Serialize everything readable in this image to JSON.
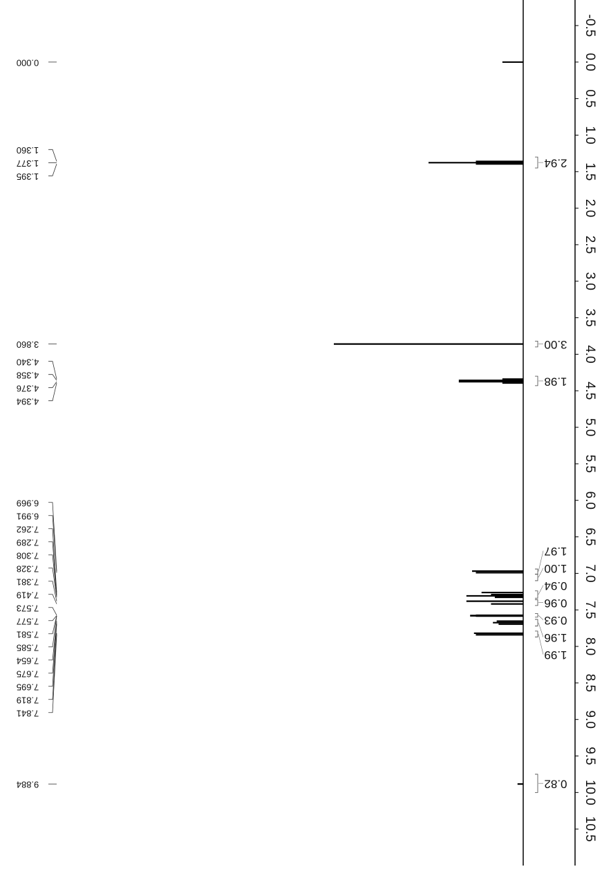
{
  "chart_data": {
    "type": "nmr",
    "xlim": [
      -0.85,
      11.0
    ],
    "xticks": [
      -0.5,
      {
        "value": 0,
        "label": "0.0"
      },
      0.5,
      {
        "value": 1,
        "label": "1.0"
      },
      1.5,
      {
        "value": 2,
        "label": "2.0"
      },
      2.5,
      {
        "value": 3,
        "label": "3.0"
      },
      3.5,
      {
        "value": 4,
        "label": "4.0"
      },
      4.5,
      {
        "value": 5,
        "label": "5.0"
      },
      5.5,
      {
        "value": 6,
        "label": "6.0"
      },
      6.5,
      {
        "value": 7,
        "label": "7.0"
      },
      7.5,
      {
        "value": 8,
        "label": "8.0"
      },
      8.5,
      {
        "value": 9,
        "label": "9.0"
      },
      9.5,
      {
        "value": 10,
        "label": "10.0"
      },
      10.5
    ],
    "color": "#000000",
    "peaks": {
      "x": [
        0,
        1.36,
        1.377,
        1.395,
        3.86,
        4.34,
        4.358,
        4.376,
        4.394,
        6.969,
        6.991,
        7.262,
        7.289,
        7.308,
        7.328,
        7.381,
        7.419,
        7.573,
        7.577,
        7.581,
        7.585,
        7.654,
        7.675,
        7.695,
        7.819,
        7.841,
        9.884
      ],
      "x_labels": [
        "0.000",
        "1.360",
        "1.377",
        "1.395",
        "3.860",
        "4.340",
        "4.358",
        "4.376",
        "4.394",
        "6.969",
        "6.991",
        "7.262",
        "7.289",
        "7.308",
        "7.328",
        "7.381",
        "7.419",
        "7.573",
        "7.577",
        "7.581",
        "7.585",
        "7.654",
        "7.675",
        "7.695",
        "7.819",
        "7.841",
        "9.884"
      ],
      "values": [
        11,
        25,
        50,
        25,
        100,
        11,
        34,
        34,
        11,
        27,
        25,
        22,
        17,
        30,
        15,
        30,
        17,
        25,
        28,
        28,
        25,
        14,
        16,
        13,
        26,
        25,
        3
      ]
    },
    "integrals": {
      "ranges": [
        [
          1.3,
          1.45
        ],
        [
          3.82,
          3.9
        ],
        [
          4.3,
          4.43
        ],
        [
          6.94,
          7.01
        ],
        [
          7.01,
          7.1
        ],
        [
          7.24,
          7.34
        ],
        [
          7.36,
          7.44
        ],
        [
          7.55,
          7.6
        ],
        [
          7.63,
          7.72
        ],
        [
          7.79,
          7.87
        ],
        [
          9.75,
          10.0
        ]
      ],
      "values": [
        2.94,
        3,
        1.98,
        1.97,
        1,
        0.94,
        0.96,
        0.93,
        1.96,
        1.99,
        0.82
      ],
      "value_labels": [
        "2.94",
        "3.00",
        "1.98",
        "1.97",
        "1.00",
        "0.94",
        "0.96",
        "0.93",
        "1.96",
        "1.99",
        "0.82"
      ]
    }
  }
}
